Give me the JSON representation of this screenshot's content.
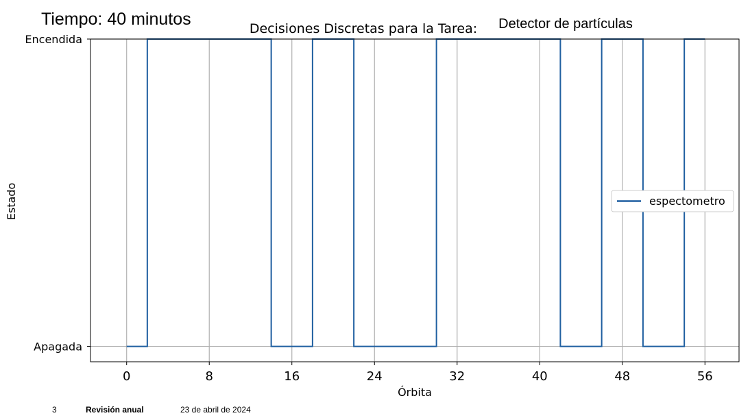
{
  "header": {
    "time_prefix": "Tiempo: 40",
    "time_suffix": "minutos",
    "overlay_title": "Detector de partículas"
  },
  "chart_data": {
    "type": "line",
    "step": "post",
    "title": "Decisiones Discretas para la Tarea:",
    "xlabel": "Órbita",
    "ylabel": "Estado",
    "xlim": [
      -3.5,
      59.3
    ],
    "ylim": [
      -0.05,
      1.0
    ],
    "x_ticks": [
      0,
      8,
      16,
      24,
      32,
      40,
      48,
      56
    ],
    "y_ticks": [
      {
        "value": 0,
        "label": "Apagada"
      },
      {
        "value": 1,
        "label": "Encendida"
      }
    ],
    "grid": true,
    "legend_position": "center-right",
    "series": [
      {
        "name": "espectometro",
        "color": "#1f5fa0",
        "x": [
          0,
          2,
          14,
          18,
          22,
          30,
          42,
          46,
          50,
          54,
          56
        ],
        "y": [
          0,
          1,
          0,
          1,
          0,
          1,
          0,
          1,
          0,
          1,
          1
        ]
      }
    ]
  },
  "footer": {
    "page": "3",
    "title": "Revisión anual",
    "date": "23 de abril de 2024"
  }
}
